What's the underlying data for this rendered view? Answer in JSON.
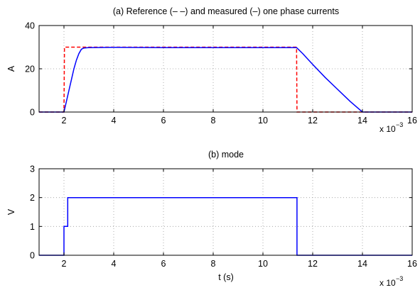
{
  "chart_data": [
    {
      "type": "line",
      "title": "(a) Reference (– –) and measured (–) one phase currents",
      "xlabel": "",
      "ylabel": "A",
      "xlim": [
        1,
        16
      ],
      "ylim": [
        0,
        40
      ],
      "x_ticks": [
        2,
        4,
        6,
        8,
        10,
        12,
        14,
        16
      ],
      "x_tick_labels": [
        "2",
        "4",
        "6",
        "8",
        "10",
        "12",
        "14",
        "16"
      ],
      "y_ticks": [
        0,
        20,
        40
      ],
      "y_tick_labels": [
        "0",
        "20",
        "40"
      ],
      "x_multiplier_base": "x 10",
      "x_multiplier_exp": "−3",
      "grid": true,
      "series": [
        {
          "style": "dashed",
          "color": "#ff0000",
          "x": [
            1,
            2.0,
            2.02,
            11.35,
            11.37,
            16
          ],
          "y": [
            0,
            0,
            30,
            30,
            0,
            0
          ]
        },
        {
          "style": "solid",
          "color": "#0000ff",
          "x": [
            1,
            2.0,
            2.1,
            2.2,
            2.3,
            2.4,
            2.5,
            2.6,
            2.7,
            2.8,
            3.0,
            4.0,
            6.0,
            7.0,
            9.0,
            11.35,
            11.6,
            12.0,
            12.5,
            13.0,
            13.5,
            14.0,
            16
          ],
          "y": [
            0,
            0,
            5,
            10,
            15,
            20,
            24,
            27,
            29,
            29.6,
            29.8,
            29.9,
            29.8,
            29.8,
            29.8,
            29.8,
            27.0,
            22.0,
            16.0,
            10.5,
            5.0,
            0,
            0
          ]
        }
      ]
    },
    {
      "type": "line",
      "title": "(b) mode",
      "xlabel": "t (s)",
      "ylabel": "V",
      "xlim": [
        1,
        16
      ],
      "ylim": [
        0,
        3
      ],
      "x_ticks": [
        2,
        4,
        6,
        8,
        10,
        12,
        14,
        16
      ],
      "x_tick_labels": [
        "2",
        "4",
        "6",
        "8",
        "10",
        "12",
        "14",
        "16"
      ],
      "y_ticks": [
        0,
        1,
        2,
        3
      ],
      "y_tick_labels": [
        "0",
        "1",
        "2",
        "3"
      ],
      "x_multiplier_base": "x 10",
      "x_multiplier_exp": "−3",
      "grid": true,
      "series": [
        {
          "style": "solid",
          "color": "#0000ff",
          "x": [
            1,
            2.0,
            2.0,
            2.05,
            2.05,
            2.15,
            2.15,
            11.37,
            11.37,
            16
          ],
          "y": [
            0,
            0,
            1,
            1,
            1,
            1,
            2,
            2,
            0,
            0
          ]
        }
      ]
    }
  ]
}
